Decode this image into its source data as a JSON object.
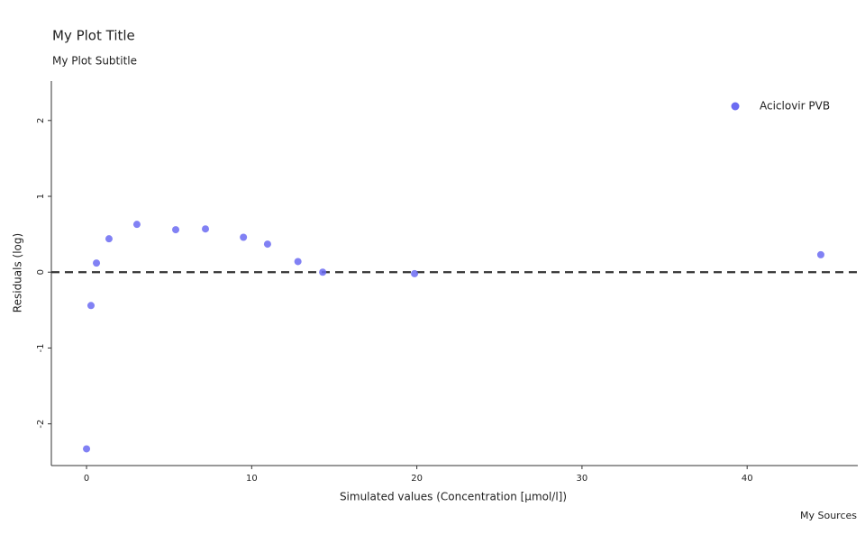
{
  "chart_data": {
    "type": "scatter",
    "title": "My Plot Title",
    "subtitle": "My Plot Subtitle",
    "caption": "My Sources",
    "x_label": "Simulated values (Concentration [µmol/l])",
    "y_label": "Residuals (log)",
    "series": [
      {
        "name": "Aciclovir PVB",
        "color": "#6b6bf2",
        "x": [
          0,
          0.27,
          0.6,
          1.36,
          3.05,
          5.4,
          7.2,
          9.5,
          10.96,
          12.8,
          14.3,
          19.86,
          44.46
        ],
        "values": [
          -2.33,
          -0.44,
          0.12,
          0.44,
          0.63,
          0.56,
          0.57,
          0.46,
          0.37,
          0.14,
          0.0,
          -0.02,
          0.23
        ]
      }
    ],
    "xlim": [
      -2.13,
      46.7
    ],
    "ylim": [
      -2.55,
      2.52
    ],
    "xticks": [
      0,
      10,
      20,
      30,
      40
    ],
    "yticks": [
      -2,
      -1,
      0,
      1,
      2
    ],
    "hline": 0,
    "legend": "top-right",
    "grid": false
  }
}
